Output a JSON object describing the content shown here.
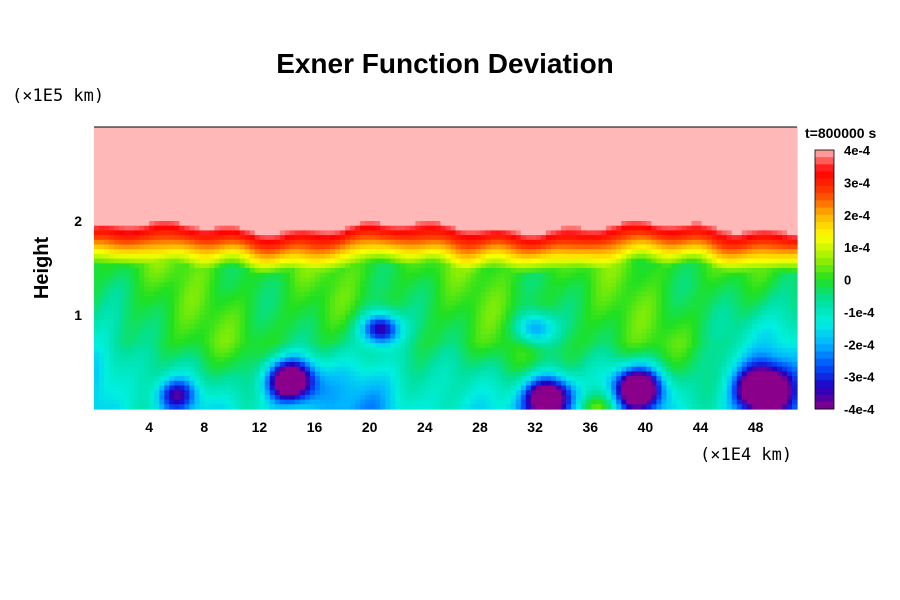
{
  "chart_data": {
    "type": "heatmap",
    "title": "Exner Function Deviation",
    "xlabel": "",
    "xunit": "(×1E4 km)",
    "ylabel": "Height",
    "yunit": "(×1E5 km)",
    "time_label": "t=800000 s",
    "x_ticks": [
      "4",
      "8",
      "12",
      "16",
      "20",
      "24",
      "28",
      "32",
      "36",
      "40",
      "44",
      "48"
    ],
    "x_tick_values": [
      4,
      8,
      12,
      16,
      20,
      24,
      28,
      32,
      36,
      40,
      44,
      48
    ],
    "y_ticks": [
      "1",
      "2"
    ],
    "y_tick_values": [
      1,
      2
    ],
    "xlim": [
      0,
      51
    ],
    "ylim": [
      0,
      3
    ],
    "colorbar": {
      "min": -0.0004,
      "max": 0.0004,
      "labels": [
        "4e-4",
        "3e-4",
        "2e-4",
        "1e-4",
        "0",
        "-1e-4",
        "-2e-4",
        "-3e-4",
        "-4e-4"
      ],
      "values": [
        0.0004,
        0.0003,
        0.0002,
        0.0001,
        0,
        -0.0001,
        -0.0002,
        -0.0003,
        -0.0004
      ],
      "colormap": [
        "#8a008a",
        "#2000c0",
        "#0050ff",
        "#00b4ff",
        "#00f0e0",
        "#00e0a0",
        "#20e020",
        "#a0f000",
        "#ffff00",
        "#ffb000",
        "#ff4000",
        "#ff0000",
        "#ffb8b8"
      ]
    },
    "field_features": {
      "upper_layer_value": 0.0004,
      "transition_height": 1.85,
      "background_value": 0.0,
      "lows": [
        {
          "x": 14.2,
          "y": 0.3,
          "value": -0.0004
        },
        {
          "x": 20.8,
          "y": 0.85,
          "value": -0.0003
        },
        {
          "x": 33.0,
          "y": 0.12,
          "value": -0.0004
        },
        {
          "x": 39.5,
          "y": 0.22,
          "value": -0.0004
        },
        {
          "x": 48.5,
          "y": 0.2,
          "value": -0.0004
        },
        {
          "x": 6.0,
          "y": 0.15,
          "value": -0.0002
        },
        {
          "x": 32.0,
          "y": 0.85,
          "value": -0.0002
        }
      ],
      "highs": [
        {
          "x": 36.5,
          "y": 0.0,
          "value": 0.0001
        }
      ]
    }
  },
  "colors": {
    "background": "#ffffff",
    "axis": "#000000"
  }
}
